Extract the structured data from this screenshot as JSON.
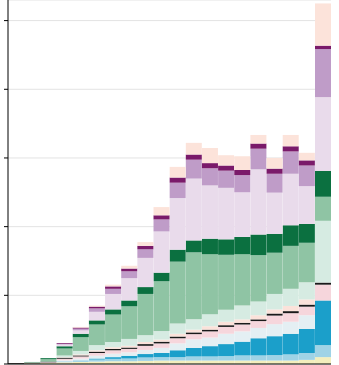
{
  "chart_data": {
    "type": "bar",
    "stacked": true,
    "grid": true,
    "tick_labels": false,
    "categories": [
      null,
      null,
      null,
      null,
      null,
      null,
      null,
      null,
      null,
      null,
      null,
      null,
      null,
      null,
      null,
      null,
      null,
      null,
      null,
      null
    ],
    "ylim": [
      0,
      106
    ],
    "yticks": [
      0,
      20,
      40,
      60,
      80,
      100
    ],
    "series": [
      {
        "color": "#f3eebd",
        "values": [
          0.1,
          0.2,
          0.3,
          0.5,
          0.6,
          0.7,
          0.8,
          0.8,
          0.9,
          1,
          1,
          1,
          1,
          1,
          1,
          1,
          1,
          1,
          1.2,
          2
        ]
      },
      {
        "color": "#9fd3e6",
        "values": [
          0,
          0,
          0,
          0.3,
          0.5,
          0.6,
          0.7,
          0.8,
          1,
          1,
          1,
          1.2,
          1.2,
          1.3,
          1.5,
          1.5,
          1.6,
          1.8,
          2,
          3.5
        ]
      },
      {
        "color": "#1b9fca",
        "values": [
          0,
          0,
          0,
          0,
          0,
          0.3,
          0.5,
          0.8,
          1,
          1.2,
          2,
          2.5,
          3,
          3.5,
          4,
          5,
          5.5,
          6,
          7,
          13
        ]
      },
      {
        "color": "#e4eff3",
        "values": [
          0,
          0,
          0,
          0.3,
          0.5,
          0.8,
          1,
          1,
          1.2,
          1.5,
          2,
          2.5,
          2.5,
          3,
          3,
          3,
          3.5,
          3.5,
          4,
          0
        ]
      },
      {
        "color": "#f6d6dc",
        "values": [
          0,
          0,
          0.2,
          0.4,
          0.6,
          0.8,
          1,
          1,
          1.2,
          1.3,
          1.5,
          1.5,
          1.8,
          2,
          2,
          2,
          2.5,
          2.5,
          2.5,
          4.6
        ]
      },
      {
        "color": "#1a1a1a",
        "values": [
          0.2,
          0.2,
          0.2,
          0.3,
          0.3,
          0.4,
          0.4,
          0.4,
          0.5,
          0.5,
          0.5,
          0.5,
          0.5,
          0.5,
          0.5,
          0.5,
          0.6,
          0.6,
          0.6,
          0.6
        ]
      },
      {
        "color": "#fbe2da",
        "values": [
          0,
          0,
          0,
          0.2,
          0.3,
          0.4,
          0.5,
          0.5,
          0.6,
          0.6,
          0.8,
          0.8,
          1,
          1,
          1,
          1.2,
          1.2,
          1.5,
          1.5,
          0
        ]
      },
      {
        "color": "#d6ebe2",
        "values": [
          0,
          0,
          0,
          0.5,
          1,
          1.5,
          1.5,
          2,
          2,
          2.5,
          3,
          3,
          3.5,
          3.5,
          4,
          4,
          4.5,
          5,
          5,
          18
        ]
      },
      {
        "color": "#8fc4a4",
        "values": [
          0,
          0.2,
          0.7,
          2,
          4,
          6,
          8,
          9.5,
          12,
          14.5,
          18,
          19.5,
          17.5,
          16,
          15,
          13.5,
          12,
          12.5,
          11.5,
          7
        ]
      },
      {
        "color": "#0b7040",
        "values": [
          0,
          0,
          0.3,
          0.7,
          1,
          1.2,
          1.5,
          1.7,
          2,
          2.5,
          3.5,
          3.5,
          4.5,
          4.5,
          5,
          6,
          5.5,
          6,
          5.5,
          7.5
        ]
      },
      {
        "color": "#e9dbeb",
        "values": [
          0,
          0,
          0,
          0.5,
          1,
          2.5,
          4.5,
          6.5,
          8.5,
          12,
          15,
          18,
          15.5,
          15,
          13,
          19,
          12,
          15,
          11,
          21.5
        ]
      },
      {
        "color": "#bf9cc8",
        "values": [
          0,
          0,
          0,
          0.2,
          0.5,
          1,
          1.5,
          2,
          2.5,
          3.5,
          4.5,
          5.5,
          5,
          5,
          5,
          6,
          5.5,
          6.5,
          6,
          14
        ]
      },
      {
        "color": "#7a1a6a",
        "values": [
          0,
          0,
          0,
          0.2,
          0.3,
          0.5,
          0.7,
          0.8,
          1,
          1.2,
          1.5,
          1.5,
          1.5,
          1.5,
          1.5,
          1.5,
          1.5,
          1.5,
          1.5,
          1
        ]
      },
      {
        "color": "#fce3da",
        "values": [
          0,
          0,
          0,
          0,
          0.2,
          0.3,
          0.5,
          0.8,
          1.1,
          2.4,
          3.1,
          3.4,
          4.4,
          3,
          4,
          2.5,
          3.1,
          3.3,
          2.2,
          12.3
        ]
      }
    ]
  }
}
